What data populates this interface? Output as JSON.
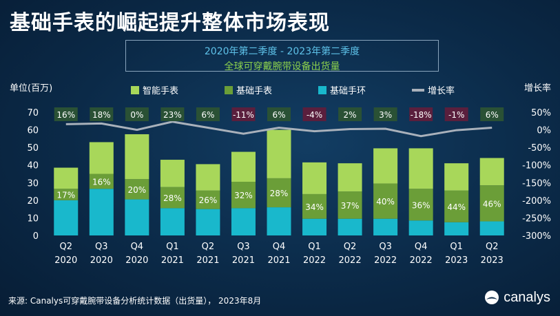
{
  "title": "基础手表的崛起提升整体市场表现",
  "subtitle": [
    "2020年第二季度 - 2023年第二季度",
    "全球可穿戴腕带设备出货量"
  ],
  "source": "来源: Canalys可穿戴腕带设备分析统计数据（出货量），   2023年8月",
  "brand": "canalys",
  "chart_data": {
    "type": "bar",
    "stacked": true,
    "ylabel": "单位(百万)",
    "y2label": "增长率",
    "ylim": [
      0,
      70
    ],
    "yticks": [
      "0",
      "10",
      "20",
      "30",
      "40",
      "50",
      "60",
      "70"
    ],
    "y2lim": [
      -300,
      50
    ],
    "y2ticks": [
      "50%",
      "0%",
      "-50%",
      "-100%",
      "-150%",
      "-200%",
      "-250%",
      "-300%"
    ],
    "categories": [
      [
        "Q2",
        "2020"
      ],
      [
        "Q3",
        "2020"
      ],
      [
        "Q4",
        "2020"
      ],
      [
        "Q1",
        "2021"
      ],
      [
        "Q2",
        "2021"
      ],
      [
        "Q3",
        "2021"
      ],
      [
        "Q4",
        "2021"
      ],
      [
        "Q1",
        "2022"
      ],
      [
        "Q2",
        "2022"
      ],
      [
        "Q3",
        "2022"
      ],
      [
        "Q4",
        "2022"
      ],
      [
        "Q1",
        "2023"
      ],
      [
        "Q2",
        "2023"
      ]
    ],
    "series": [
      {
        "name": "基础手环",
        "color": "#19b8cc",
        "values": [
          20,
          26.5,
          20.5,
          15.5,
          15,
          15.5,
          16,
          9.5,
          9.5,
          9.5,
          8.5,
          7.5,
          8
        ]
      },
      {
        "name": "基础手表",
        "color": "#6b9e38",
        "values": [
          6.5,
          8.5,
          11.5,
          12,
          10.5,
          15,
          16.5,
          14,
          15.5,
          20,
          18,
          18,
          20.5
        ]
      },
      {
        "name": "智能手表",
        "color": "#a8d75a",
        "values": [
          12,
          18,
          25.5,
          15.5,
          15,
          17,
          27.5,
          18,
          16,
          20,
          23,
          15.5,
          15.5
        ]
      }
    ],
    "growth": {
      "name": "增长率",
      "color": "#a9b1bb",
      "values": [
        16,
        18,
        0,
        23,
        6,
        -11,
        6,
        -4,
        2,
        3,
        -18,
        -1,
        6
      ],
      "labels": [
        "16%",
        "18%",
        "0%",
        "23%",
        "6%",
        "-11%",
        "6%",
        "-4%",
        "2%",
        "3%",
        "-18%",
        "-1%",
        "6%"
      ]
    },
    "basic_watch_share_labels": [
      "17%",
      "16%",
      "20%",
      "28%",
      "26%",
      "32%",
      "28%",
      "34%",
      "37%",
      "40%",
      "36%",
      "44%",
      "46%"
    ],
    "legend_position": "top"
  }
}
